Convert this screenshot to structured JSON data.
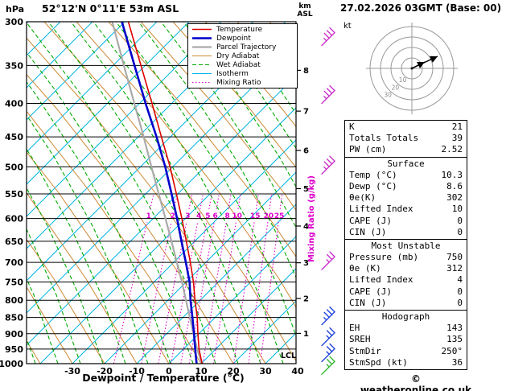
{
  "header": {
    "pressure_unit": "hPa",
    "station": "52°12'N 0°11'E 53m ASL",
    "km": "km",
    "asl": "ASL",
    "datetime": "27.02.2026 03GMT (Base: 00)"
  },
  "axes": {
    "pressure_ticks": [
      300,
      350,
      400,
      450,
      500,
      550,
      600,
      650,
      700,
      750,
      800,
      850,
      900,
      950,
      1000
    ],
    "temp_ticks": [
      -30,
      -20,
      -10,
      0,
      10,
      20,
      30,
      40
    ],
    "xlabel": "Dewpoint / Temperature (°C)",
    "km_ticks": [
      {
        "km": 1,
        "p": 899
      },
      {
        "km": 2,
        "p": 795
      },
      {
        "km": 3,
        "p": 701
      },
      {
        "km": 4,
        "p": 616
      },
      {
        "km": 5,
        "p": 540
      },
      {
        "km": 6,
        "p": 472
      },
      {
        "km": 7,
        "p": 411
      },
      {
        "km": 8,
        "p": 356
      }
    ],
    "lcl_label": "LCL",
    "mixing_axis_label": "Mixing Ratio (g/kg)"
  },
  "colors": {
    "temperature": "#dd0000",
    "dewpoint": "#0000cc",
    "parcel": "#aaaaaa",
    "dry_adiabat": "#cc8833",
    "wet_adiabat": "#00aa00",
    "isotherm": "#00b4e4",
    "mixing_ratio": "#dd00cc",
    "barb_upper": "#cc33cc",
    "barb_low": "#2244dd",
    "barb_surface": "#33bb33"
  },
  "legend": [
    {
      "label": "Temperature",
      "color": "#dd0000",
      "width": 1.6,
      "dash": ""
    },
    {
      "label": "Dewpoint",
      "color": "#0000cc",
      "width": 2.6,
      "dash": ""
    },
    {
      "label": "Parcel Trajectory",
      "color": "#aaaaaa",
      "width": 2.2,
      "dash": ""
    },
    {
      "label": "Dry Adiabat",
      "color": "#cc8833",
      "width": 1,
      "dash": ""
    },
    {
      "label": "Wet Adiabat",
      "color": "#00aa00",
      "width": 1.1,
      "dash": "5,3"
    },
    {
      "label": "Isotherm",
      "color": "#00b4e4",
      "width": 1,
      "dash": ""
    },
    {
      "label": "Mixing Ratio",
      "color": "#dd00cc",
      "width": 1.1,
      "dash": "1.5,2.5"
    }
  ],
  "chart_data": {
    "type": "line",
    "title": "Skew-T log-P sounding",
    "x_axis": {
      "label": "Dewpoint / Temperature (°C)",
      "min": -40,
      "max": 40
    },
    "y_axis": {
      "label": "hPa",
      "scale": "log",
      "min": 300,
      "max": 1000
    },
    "levels_hPa": [
      1000,
      950,
      900,
      850,
      800,
      750,
      700,
      650,
      600,
      550,
      500,
      450,
      400,
      350,
      300
    ],
    "series": [
      {
        "name": "Temperature",
        "color": "#dd0000",
        "values": [
          10.3,
          8.0,
          6.2,
          4.5,
          2.2,
          0.0,
          -2.8,
          -6.0,
          -9.5,
          -13.5,
          -18.0,
          -23.5,
          -29.5,
          -36.5,
          -44.5
        ]
      },
      {
        "name": "Dewpoint",
        "color": "#0000cc",
        "values": [
          8.6,
          6.8,
          5.0,
          3.0,
          0.8,
          -1.2,
          -4.2,
          -7.5,
          -11.0,
          -15.0,
          -19.5,
          -25.0,
          -31.5,
          -38.5,
          -46.5
        ]
      },
      {
        "name": "Parcel Trajectory",
        "color": "#aaaaaa",
        "values": [
          10.3,
          7.4,
          4.8,
          2.2,
          -0.6,
          -3.6,
          -7.0,
          -10.6,
          -14.6,
          -19.0,
          -23.8,
          -29.0,
          -35.0,
          -41.8,
          -49.5
        ]
      }
    ],
    "mixing_ratio_g_kg": [
      1,
      2,
      3,
      4,
      5,
      6,
      8,
      10,
      15,
      20,
      25
    ],
    "wind_barbs": [
      {
        "p": 318,
        "color": "#cc33cc",
        "feathers": 3
      },
      {
        "p": 390,
        "color": "#cc33cc",
        "feathers": 3
      },
      {
        "p": 500,
        "color": "#cc33cc",
        "feathers": 3
      },
      {
        "p": 700,
        "color": "#cc33cc",
        "feathers": 2
      },
      {
        "p": 850,
        "color": "#2244dd",
        "feathers": 3
      },
      {
        "p": 915,
        "color": "#2244dd",
        "feathers": 2
      },
      {
        "p": 968,
        "color": "#2244dd",
        "feathers": 2
      },
      {
        "p": 1012,
        "color": "#33bb33",
        "feathers": 2
      }
    ]
  },
  "hodograph": {
    "unit": "kt",
    "rings_kt": [
      10,
      20,
      30,
      40
    ],
    "ring_labels": [
      "10",
      "20",
      "30"
    ],
    "storm_dir_deg": 250,
    "storm_spd_kt": 36,
    "arrows": [
      {
        "dx": 32,
        "dy": -15
      },
      {
        "dx": 16,
        "dy": -8
      }
    ]
  },
  "table": {
    "sections": [
      {
        "header": null,
        "rows": [
          [
            "K",
            "21"
          ],
          [
            "Totals Totals",
            "39"
          ],
          [
            "PW (cm)",
            "2.52"
          ]
        ]
      },
      {
        "header": "Surface",
        "rows": [
          [
            "Temp (°C)",
            "10.3"
          ],
          [
            "Dewp (°C)",
            "8.6"
          ],
          [
            "θe(K)",
            "302"
          ],
          [
            "Lifted Index",
            "10"
          ],
          [
            "CAPE (J)",
            "0"
          ],
          [
            "CIN (J)",
            "0"
          ]
        ]
      },
      {
        "header": "Most Unstable",
        "rows": [
          [
            "Pressure (mb)",
            "750"
          ],
          [
            "θe (K)",
            "312"
          ],
          [
            "Lifted Index",
            "4"
          ],
          [
            "CAPE (J)",
            "0"
          ],
          [
            "CIN (J)",
            "0"
          ]
        ]
      },
      {
        "header": "Hodograph",
        "rows": [
          [
            "EH",
            "143"
          ],
          [
            "SREH",
            "135"
          ],
          [
            "StmDir",
            "250°"
          ],
          [
            "StmSpd (kt)",
            "36"
          ]
        ]
      }
    ]
  },
  "footer": {
    "copyright": "© weatheronline.co.uk"
  }
}
